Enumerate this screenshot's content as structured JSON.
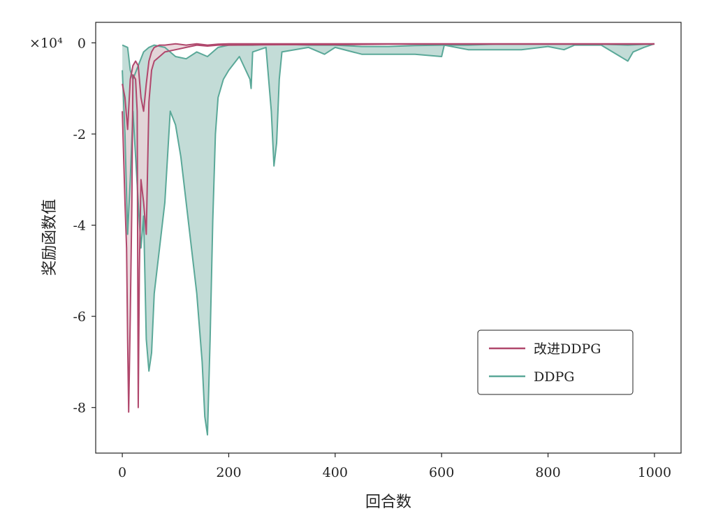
{
  "chart_data": {
    "type": "line",
    "title": "",
    "xlabel": "回合数",
    "ylabel": "奖励函数值",
    "y_multiplier_label": "×10⁴",
    "xlim": [
      -50,
      1050
    ],
    "ylim": [
      -9.0,
      0.45
    ],
    "xticks": [
      0,
      200,
      400,
      600,
      800,
      1000
    ],
    "yticks": [
      0,
      -2,
      -4,
      -6,
      -8
    ],
    "xtick_labels": [
      "0",
      "200",
      "400",
      "600",
      "800",
      "1000"
    ],
    "ytick_labels": [
      "0",
      "-2",
      "-4",
      "-6",
      "-8"
    ],
    "grid": false,
    "legend_position": "lower-right",
    "series": [
      {
        "name": "改进DDPG",
        "color": "#b0476c",
        "fill": "#e8d4d8",
        "upper": [
          [
            0,
            -0.9
          ],
          [
            5,
            -1.2
          ],
          [
            10,
            -1.9
          ],
          [
            15,
            -0.8
          ],
          [
            20,
            -0.5
          ],
          [
            25,
            -0.4
          ],
          [
            30,
            -0.5
          ],
          [
            35,
            -1.2
          ],
          [
            40,
            -1.5
          ],
          [
            45,
            -0.9
          ],
          [
            50,
            -0.4
          ],
          [
            55,
            -0.2
          ],
          [
            60,
            -0.1
          ],
          [
            70,
            -0.05
          ],
          [
            80,
            -0.05
          ],
          [
            100,
            -0.02
          ],
          [
            120,
            -0.05
          ],
          [
            140,
            -0.02
          ],
          [
            160,
            -0.05
          ],
          [
            180,
            -0.03
          ],
          [
            200,
            -0.02
          ],
          [
            300,
            -0.02
          ],
          [
            400,
            -0.02
          ],
          [
            500,
            -0.02
          ],
          [
            600,
            -0.02
          ],
          [
            700,
            -0.02
          ],
          [
            800,
            -0.02
          ],
          [
            900,
            -0.02
          ],
          [
            1000,
            -0.02
          ]
        ],
        "lower": [
          [
            0,
            -1.5
          ],
          [
            5,
            -3.5
          ],
          [
            8,
            -4.5
          ],
          [
            10,
            -6.5
          ],
          [
            12,
            -8.1
          ],
          [
            15,
            -6.0
          ],
          [
            18,
            -3.5
          ],
          [
            20,
            -0.7
          ],
          [
            25,
            -0.8
          ],
          [
            28,
            -1.5
          ],
          [
            30,
            -8.0
          ],
          [
            32,
            -5.0
          ],
          [
            35,
            -3.0
          ],
          [
            40,
            -3.5
          ],
          [
            45,
            -4.2
          ],
          [
            50,
            -1.3
          ],
          [
            55,
            -0.6
          ],
          [
            60,
            -0.4
          ],
          [
            70,
            -0.3
          ],
          [
            80,
            -0.2
          ],
          [
            100,
            -0.15
          ],
          [
            120,
            -0.1
          ],
          [
            140,
            -0.05
          ],
          [
            160,
            -0.07
          ],
          [
            180,
            -0.05
          ],
          [
            200,
            -0.05
          ],
          [
            300,
            -0.04
          ],
          [
            400,
            -0.04
          ],
          [
            500,
            -0.03
          ],
          [
            600,
            -0.03
          ],
          [
            700,
            -0.03
          ],
          [
            800,
            -0.03
          ],
          [
            900,
            -0.03
          ],
          [
            1000,
            -0.03
          ]
        ]
      },
      {
        "name": "DDPG",
        "color": "#5aa898",
        "fill": "#b9d6d0",
        "upper": [
          [
            0,
            -0.05
          ],
          [
            10,
            -0.1
          ],
          [
            15,
            -0.6
          ],
          [
            20,
            -0.8
          ],
          [
            30,
            -0.5
          ],
          [
            40,
            -0.2
          ],
          [
            50,
            -0.1
          ],
          [
            60,
            -0.05
          ],
          [
            80,
            -0.1
          ],
          [
            100,
            -0.3
          ],
          [
            120,
            -0.35
          ],
          [
            140,
            -0.2
          ],
          [
            160,
            -0.3
          ],
          [
            180,
            -0.1
          ],
          [
            200,
            -0.05
          ],
          [
            240,
            -0.05
          ],
          [
            245,
            -0.05
          ],
          [
            280,
            -0.03
          ],
          [
            300,
            -0.03
          ],
          [
            350,
            -0.05
          ],
          [
            400,
            -0.05
          ],
          [
            450,
            -0.08
          ],
          [
            500,
            -0.08
          ],
          [
            550,
            -0.06
          ],
          [
            600,
            -0.05
          ],
          [
            650,
            -0.05
          ],
          [
            700,
            -0.03
          ],
          [
            750,
            -0.03
          ],
          [
            800,
            -0.03
          ],
          [
            850,
            -0.03
          ],
          [
            900,
            -0.03
          ],
          [
            950,
            -0.05
          ],
          [
            1000,
            -0.02
          ]
        ],
        "lower": [
          [
            0,
            -0.6
          ],
          [
            5,
            -2.0
          ],
          [
            10,
            -4.2
          ],
          [
            15,
            -3.0
          ],
          [
            20,
            -1.5
          ],
          [
            25,
            -2.5
          ],
          [
            30,
            -3.5
          ],
          [
            35,
            -4.5
          ],
          [
            40,
            -3.8
          ],
          [
            45,
            -6.5
          ],
          [
            50,
            -7.2
          ],
          [
            55,
            -6.8
          ],
          [
            60,
            -5.5
          ],
          [
            70,
            -4.5
          ],
          [
            80,
            -3.5
          ],
          [
            90,
            -1.5
          ],
          [
            100,
            -1.8
          ],
          [
            110,
            -2.5
          ],
          [
            120,
            -3.5
          ],
          [
            130,
            -4.5
          ],
          [
            140,
            -5.5
          ],
          [
            150,
            -7.0
          ],
          [
            155,
            -8.2
          ],
          [
            160,
            -8.6
          ],
          [
            165,
            -6.5
          ],
          [
            170,
            -3.9
          ],
          [
            175,
            -2.0
          ],
          [
            180,
            -1.2
          ],
          [
            190,
            -0.8
          ],
          [
            200,
            -0.6
          ],
          [
            220,
            -0.3
          ],
          [
            240,
            -0.8
          ],
          [
            242,
            -1.0
          ],
          [
            245,
            -0.2
          ],
          [
            270,
            -0.1
          ],
          [
            280,
            -1.5
          ],
          [
            285,
            -2.7
          ],
          [
            290,
            -2.2
          ],
          [
            295,
            -0.8
          ],
          [
            300,
            -0.2
          ],
          [
            350,
            -0.1
          ],
          [
            380,
            -0.25
          ],
          [
            400,
            -0.1
          ],
          [
            450,
            -0.25
          ],
          [
            500,
            -0.25
          ],
          [
            550,
            -0.25
          ],
          [
            600,
            -0.3
          ],
          [
            605,
            -0.05
          ],
          [
            650,
            -0.15
          ],
          [
            700,
            -0.15
          ],
          [
            750,
            -0.15
          ],
          [
            800,
            -0.08
          ],
          [
            830,
            -0.15
          ],
          [
            850,
            -0.05
          ],
          [
            900,
            -0.05
          ],
          [
            950,
            -0.4
          ],
          [
            960,
            -0.2
          ],
          [
            980,
            -0.1
          ],
          [
            1000,
            -0.02
          ]
        ]
      }
    ]
  }
}
